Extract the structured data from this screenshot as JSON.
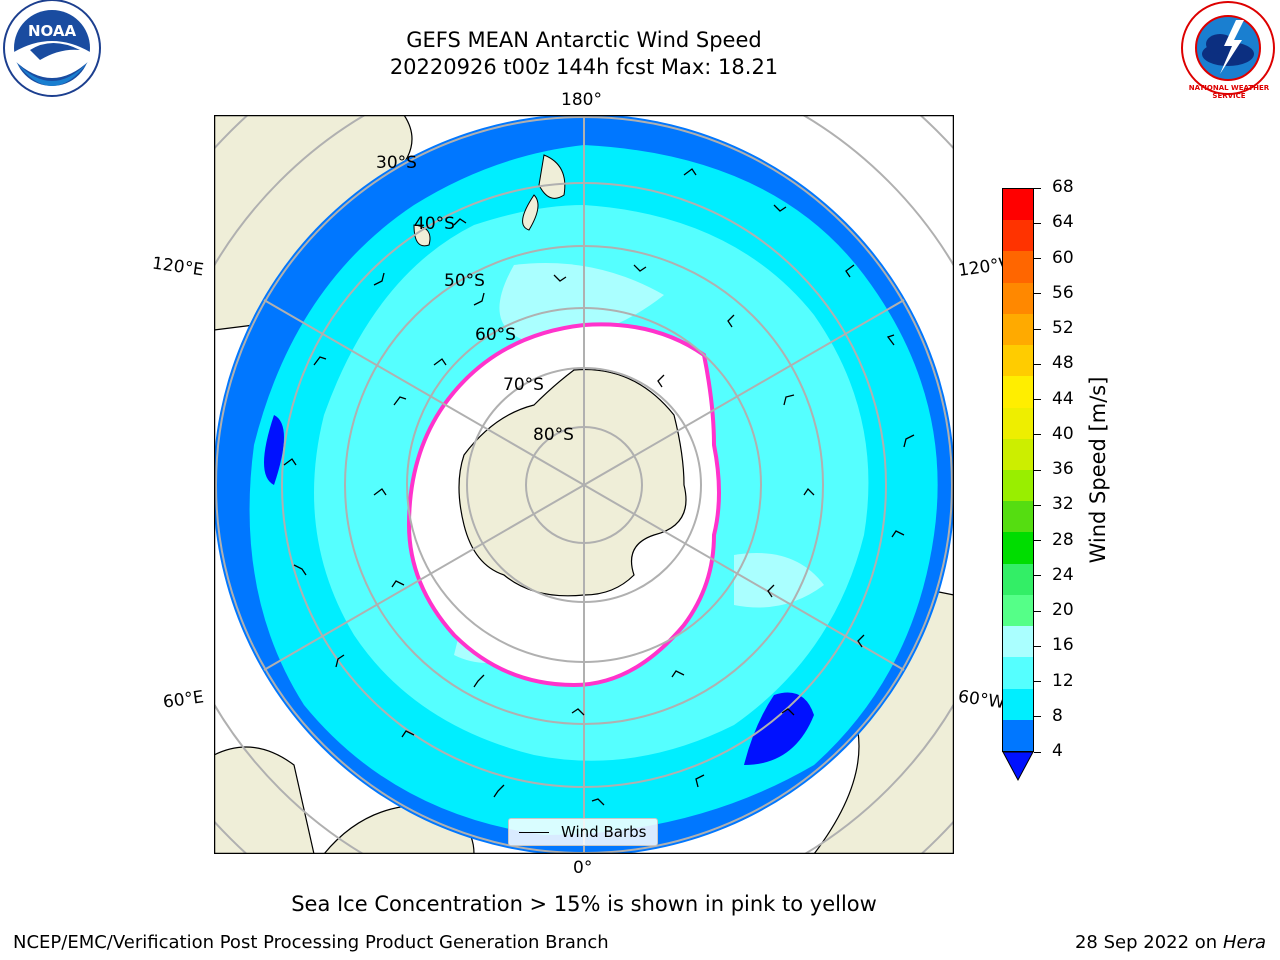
{
  "title": {
    "line1": "GEFS MEAN Antarctic Wind Speed",
    "line2": "20220926 t00z 144h fcst   Max: 18.21"
  },
  "logos": {
    "left": {
      "icon": "noaa-logo",
      "text": "NOAA"
    },
    "right": {
      "icon": "nws-logo",
      "text": "NATIONAL WEATHER SERVICE"
    }
  },
  "map": {
    "projection": "south-polar-stereographic",
    "longitude_labels": {
      "top": "180°",
      "bottom": "0°",
      "upper_left": "120°E",
      "lower_left": "60°E",
      "upper_right": "120°W",
      "lower_right": "60°W"
    },
    "latitude_labels": [
      "30°S",
      "40°S",
      "50°S",
      "60°S",
      "70°S",
      "80°S"
    ],
    "legend_label": "Wind Barbs"
  },
  "colorbar": {
    "label": "Wind Speed [m/s]",
    "ticks": [
      "68",
      "64",
      "60",
      "56",
      "52",
      "48",
      "44",
      "40",
      "36",
      "32",
      "28",
      "24",
      "20",
      "16",
      "12",
      "8",
      "4"
    ],
    "colors": [
      "#ff0000",
      "#ff3300",
      "#ff6600",
      "#ff8800",
      "#ffaa00",
      "#ffcc00",
      "#ffee00",
      "#eeee00",
      "#ccee00",
      "#99ee00",
      "#55dd11",
      "#00dd00",
      "#33ee66",
      "#55ff88",
      "#aaffff",
      "#55ffff",
      "#00eeff",
      "#0077ff"
    ],
    "under_color": "#0011ff"
  },
  "caption": "Sea Ice Concentration > 15% is shown in pink to yellow",
  "footer": {
    "left": "NCEP/EMC/Verification Post Processing Product Generation Branch",
    "right_date": "28 Sep 2022 on",
    "right_system": "Hera"
  }
}
